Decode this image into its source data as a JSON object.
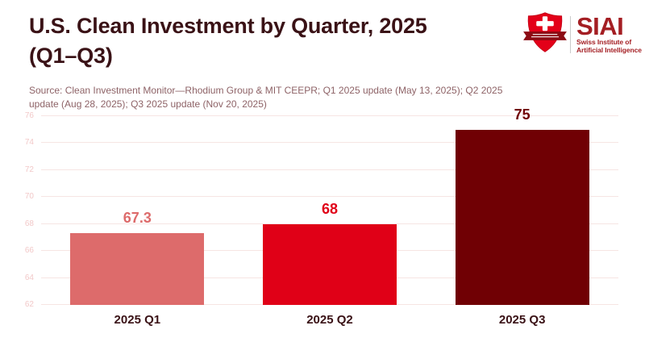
{
  "header": {
    "title_line1": "U.S. Clean Investment by Quarter, 2025",
    "title_line2": "(Q1–Q3)",
    "source_note": "Source: Clean Investment Monitor—Rhodium Group & MIT CEEPR; Q1 2025 update (May 13, 2025); Q2 2025 update (Aug 28, 2025); Q3 2025 update (Nov 20, 2025)"
  },
  "logo": {
    "acronym": "SIAI",
    "org_line1": "Swiss Institute of",
    "org_line2": "Artificial Intelligence",
    "shield_icon": "swiss-shield-cross-ribbon"
  },
  "chart_data": {
    "type": "bar",
    "title": "U.S. Clean Investment by Quarter, 2025 (Q1–Q3)",
    "categories": [
      "2025 Q1",
      "2025 Q2",
      "2025 Q3"
    ],
    "values": [
      67.3,
      68,
      75
    ],
    "value_labels": [
      "67.3",
      "68",
      "75"
    ],
    "bar_colors": [
      "#dd6b6b",
      "#e00017",
      "#700004"
    ],
    "label_colors": [
      "#dd6b6b",
      "#e00017",
      "#700004"
    ],
    "xlabel": "",
    "ylabel": "",
    "ylim": [
      62,
      76
    ],
    "yticks": [
      62,
      64,
      66,
      68,
      70,
      72,
      74,
      76
    ],
    "grid": true,
    "legend": "none"
  },
  "colors": {
    "title_text": "#3a1216",
    "category_label_text": "#3a1216",
    "source_text": "#8e6367",
    "y_tick_text": "#f2c9c9",
    "gridline": "#f6e5e3",
    "brand_red": "#a41e23",
    "shield_red": "#e30019",
    "ribbon_red": "#8c0c14",
    "background": "#ffffff"
  }
}
